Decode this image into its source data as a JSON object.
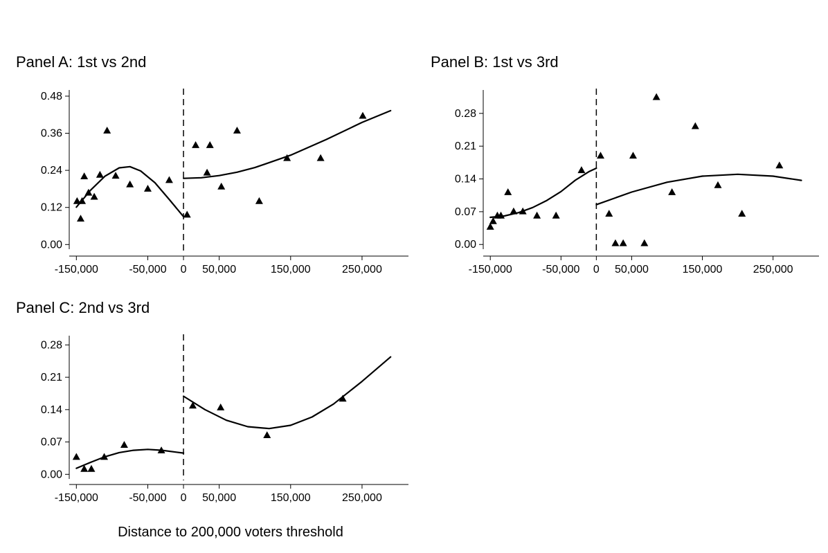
{
  "xlabel": "Distance to 200,000 voters threshold",
  "chart_data": [
    {
      "type": "scatter",
      "title": "Panel A: 1st vs 2nd",
      "xlabel": "Distance to 200,000 voters threshold",
      "ylabel": "",
      "xlim": [
        -160000,
        315000
      ],
      "ylim": [
        -0.015,
        0.5
      ],
      "xticks": [
        -150000,
        -50000,
        0,
        50000,
        150000,
        250000
      ],
      "xtick_labels": [
        "-150,000",
        "-50,000",
        "0",
        "50,000",
        "150,000",
        "250,000"
      ],
      "yticks": [
        0.0,
        0.12,
        0.24,
        0.36,
        0.48
      ],
      "ytick_labels": [
        "0.00",
        "0.12",
        "0.24",
        "0.36",
        "0.48"
      ],
      "threshold": 0,
      "points": [
        [
          -149000,
          0.141
        ],
        [
          -144000,
          0.084
        ],
        [
          -142000,
          0.141
        ],
        [
          -139000,
          0.221
        ],
        [
          -133000,
          0.168
        ],
        [
          -125000,
          0.155
        ],
        [
          -117000,
          0.226
        ],
        [
          -107000,
          0.369
        ],
        [
          -95000,
          0.223
        ],
        [
          -75000,
          0.195
        ],
        [
          -50000,
          0.181
        ],
        [
          -20000,
          0.209
        ],
        [
          5000,
          0.097
        ],
        [
          37000,
          0.322
        ],
        [
          17000,
          0.322
        ],
        [
          33000,
          0.233
        ],
        [
          53000,
          0.188
        ],
        [
          75000,
          0.369
        ],
        [
          106000,
          0.141
        ],
        [
          145000,
          0.28
        ],
        [
          192000,
          0.28
        ],
        [
          251000,
          0.417
        ]
      ],
      "fit_left": [
        [
          -150000,
          0.121
        ],
        [
          -130000,
          0.176
        ],
        [
          -110000,
          0.221
        ],
        [
          -90000,
          0.248
        ],
        [
          -75000,
          0.252
        ],
        [
          -60000,
          0.238
        ],
        [
          -40000,
          0.2
        ],
        [
          -20000,
          0.146
        ],
        [
          0,
          0.09
        ]
      ],
      "fit_right": [
        [
          0,
          0.214
        ],
        [
          25000,
          0.216
        ],
        [
          50000,
          0.223
        ],
        [
          75000,
          0.234
        ],
        [
          100000,
          0.249
        ],
        [
          150000,
          0.289
        ],
        [
          200000,
          0.34
        ],
        [
          250000,
          0.395
        ],
        [
          290000,
          0.433
        ]
      ]
    },
    {
      "type": "scatter",
      "title": "Panel B: 1st vs 3rd",
      "xlabel": "Distance to 200,000 voters threshold",
      "ylabel": "",
      "xlim": [
        -160000,
        315000
      ],
      "ylim": [
        -0.01,
        0.33
      ],
      "xticks": [
        -150000,
        -50000,
        0,
        50000,
        150000,
        250000
      ],
      "xtick_labels": [
        "-150,000",
        "-50,000",
        "0",
        "50,000",
        "150,000",
        "250,000"
      ],
      "yticks": [
        0.0,
        0.07,
        0.14,
        0.21,
        0.28
      ],
      "ytick_labels": [
        "0.00",
        "0.07",
        "0.14",
        "0.21",
        "0.28"
      ],
      "threshold": 0,
      "points": [
        [
          -150000,
          0.038
        ],
        [
          -146000,
          0.05
        ],
        [
          -140000,
          0.062
        ],
        [
          -135000,
          0.062
        ],
        [
          -125000,
          0.112
        ],
        [
          -117000,
          0.071
        ],
        [
          -104000,
          0.071
        ],
        [
          -84000,
          0.062
        ],
        [
          -57000,
          0.062
        ],
        [
          -21000,
          0.159
        ],
        [
          6000,
          0.19
        ],
        [
          18000,
          0.066
        ],
        [
          27000,
          0.003
        ],
        [
          38000,
          0.003
        ],
        [
          52000,
          0.19
        ],
        [
          68000,
          0.003
        ],
        [
          85000,
          0.315
        ],
        [
          107000,
          0.112
        ],
        [
          140000,
          0.253
        ],
        [
          172000,
          0.127
        ],
        [
          206000,
          0.066
        ],
        [
          259000,
          0.169
        ]
      ],
      "fit_left": [
        [
          -150000,
          0.058
        ],
        [
          -130000,
          0.061
        ],
        [
          -110000,
          0.068
        ],
        [
          -90000,
          0.079
        ],
        [
          -70000,
          0.094
        ],
        [
          -50000,
          0.113
        ],
        [
          -30000,
          0.137
        ],
        [
          -10000,
          0.156
        ],
        [
          0,
          0.163
        ]
      ],
      "fit_right": [
        [
          0,
          0.085
        ],
        [
          50000,
          0.112
        ],
        [
          100000,
          0.133
        ],
        [
          150000,
          0.146
        ],
        [
          200000,
          0.15
        ],
        [
          250000,
          0.146
        ],
        [
          290000,
          0.137
        ]
      ]
    },
    {
      "type": "scatter",
      "title": "Panel C: 2nd vs 3rd",
      "xlabel": "Distance to 200,000 voters threshold",
      "ylabel": "",
      "xlim": [
        -160000,
        315000
      ],
      "ylim": [
        -0.01,
        0.3
      ],
      "xticks": [
        -150000,
        -50000,
        0,
        50000,
        150000,
        250000
      ],
      "xtick_labels": [
        "-150,000",
        "-50,000",
        "0",
        "50,000",
        "150,000",
        "250,000"
      ],
      "yticks": [
        0.0,
        0.07,
        0.14,
        0.21,
        0.28
      ],
      "ytick_labels": [
        "0.00",
        "0.07",
        "0.14",
        "0.21",
        "0.28"
      ],
      "threshold": 0,
      "points": [
        [
          -150000,
          0.038
        ],
        [
          -139000,
          0.012
        ],
        [
          -129000,
          0.012
        ],
        [
          -111000,
          0.038
        ],
        [
          -83000,
          0.064
        ],
        [
          -31000,
          0.052
        ],
        [
          13000,
          0.149
        ],
        [
          52000,
          0.145
        ],
        [
          117000,
          0.085
        ],
        [
          223000,
          0.164
        ]
      ],
      "fit_left": [
        [
          -150000,
          0.013
        ],
        [
          -130000,
          0.026
        ],
        [
          -110000,
          0.038
        ],
        [
          -90000,
          0.047
        ],
        [
          -70000,
          0.052
        ],
        [
          -50000,
          0.054
        ],
        [
          -30000,
          0.052
        ],
        [
          -10000,
          0.048
        ],
        [
          0,
          0.046
        ]
      ],
      "fit_right": [
        [
          0,
          0.169
        ],
        [
          30000,
          0.14
        ],
        [
          60000,
          0.117
        ],
        [
          90000,
          0.103
        ],
        [
          120000,
          0.099
        ],
        [
          150000,
          0.106
        ],
        [
          180000,
          0.124
        ],
        [
          210000,
          0.152
        ],
        [
          250000,
          0.201
        ],
        [
          290000,
          0.254
        ]
      ]
    }
  ]
}
